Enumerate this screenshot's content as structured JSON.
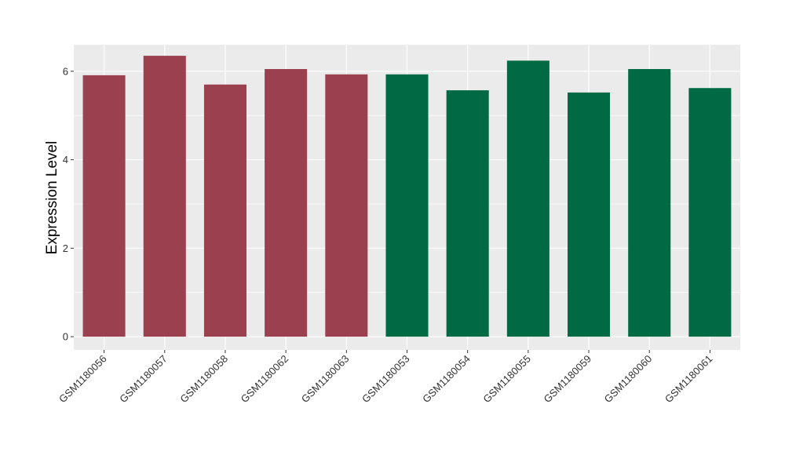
{
  "chart_data": {
    "type": "bar",
    "title": "",
    "xlabel": "",
    "ylabel": "Expression Level",
    "ylim": [
      -0.3,
      6.6
    ],
    "yticks": [
      0,
      2,
      4,
      6
    ],
    "grid": true,
    "panel_background": "#EBEBEB",
    "categories": [
      "GSM1180056",
      "GSM1180057",
      "GSM1180058",
      "GSM1180062",
      "GSM1180063",
      "GSM1180053",
      "GSM1180054",
      "GSM1180055",
      "GSM1180059",
      "GSM1180060",
      "GSM1180061"
    ],
    "values": [
      5.91,
      6.35,
      5.7,
      6.05,
      5.93,
      5.93,
      5.57,
      6.24,
      5.52,
      6.05,
      5.62
    ],
    "bar_colors": [
      "#9A404E",
      "#9A404E",
      "#9A404E",
      "#9A404E",
      "#9A404E",
      "#006A44",
      "#006A44",
      "#006A44",
      "#006A44",
      "#006A44",
      "#006A44"
    ]
  }
}
